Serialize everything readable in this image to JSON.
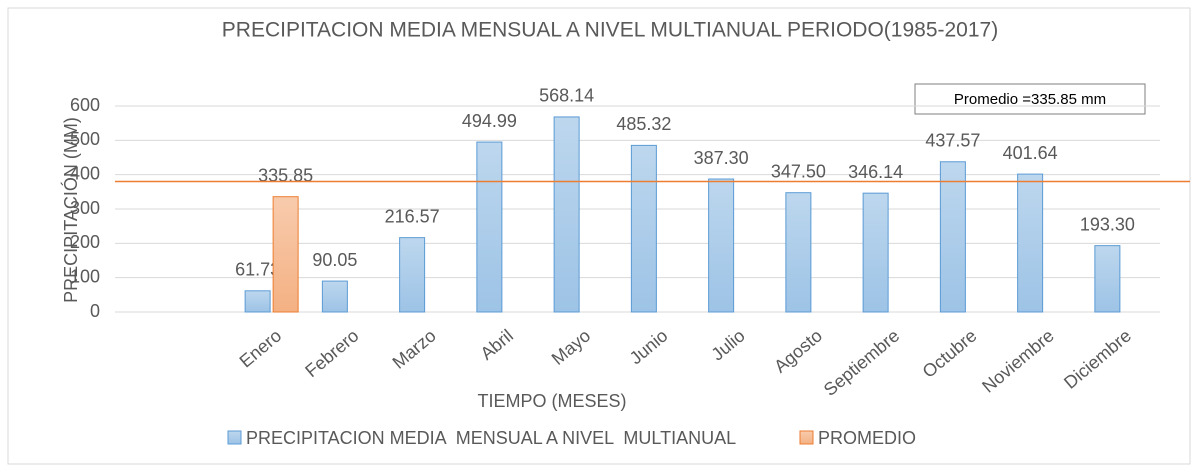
{
  "chart_data": {
    "type": "bar",
    "title": "PRECIPITACION MEDIA MENSUAL A NIVEL MULTIANUAL PERIODO(1985-2017)",
    "x_label": "TIEMPO (MESES)",
    "y_label": "PRECIPITACIÓN (MM)",
    "annotation": "Promedio =335.85 mm",
    "categories": [
      "Enero",
      "Febrero",
      "Marzo",
      "Abril",
      "Mayo",
      "Junio",
      "Julio",
      "Agosto",
      "Septiembre",
      "Octubre",
      "Noviembre",
      "Diciembre"
    ],
    "series": [
      {
        "name": "PRECIPITACION MEDIA  MENSUAL A NIVEL  MULTIANUAL",
        "color": "#9dc3e6",
        "border": "#5b9bd5",
        "values": [
          61.73,
          90.05,
          216.57,
          494.99,
          568.14,
          485.32,
          387.3,
          347.5,
          346.14,
          437.57,
          401.64,
          193.3
        ],
        "value_labels": [
          "61.73",
          "90.05",
          "216.57",
          "494.99",
          "568.14",
          "485.32",
          "387.30",
          "347.50",
          "346.14",
          "437.57",
          "401.64",
          "193.30"
        ]
      },
      {
        "name": "PROMEDIO",
        "color": "#f4b183",
        "border": "#ed7d31",
        "values": [
          335.85,
          null,
          null,
          null,
          null,
          null,
          null,
          null,
          null,
          null,
          null,
          null
        ]
      }
    ],
    "hline": {
      "value": 380,
      "color": "#ed7d31"
    },
    "ylim": [
      0,
      600
    ],
    "yticks": [
      0,
      100,
      200,
      300,
      400,
      500,
      600
    ],
    "grid": true,
    "legend": "bottom"
  }
}
